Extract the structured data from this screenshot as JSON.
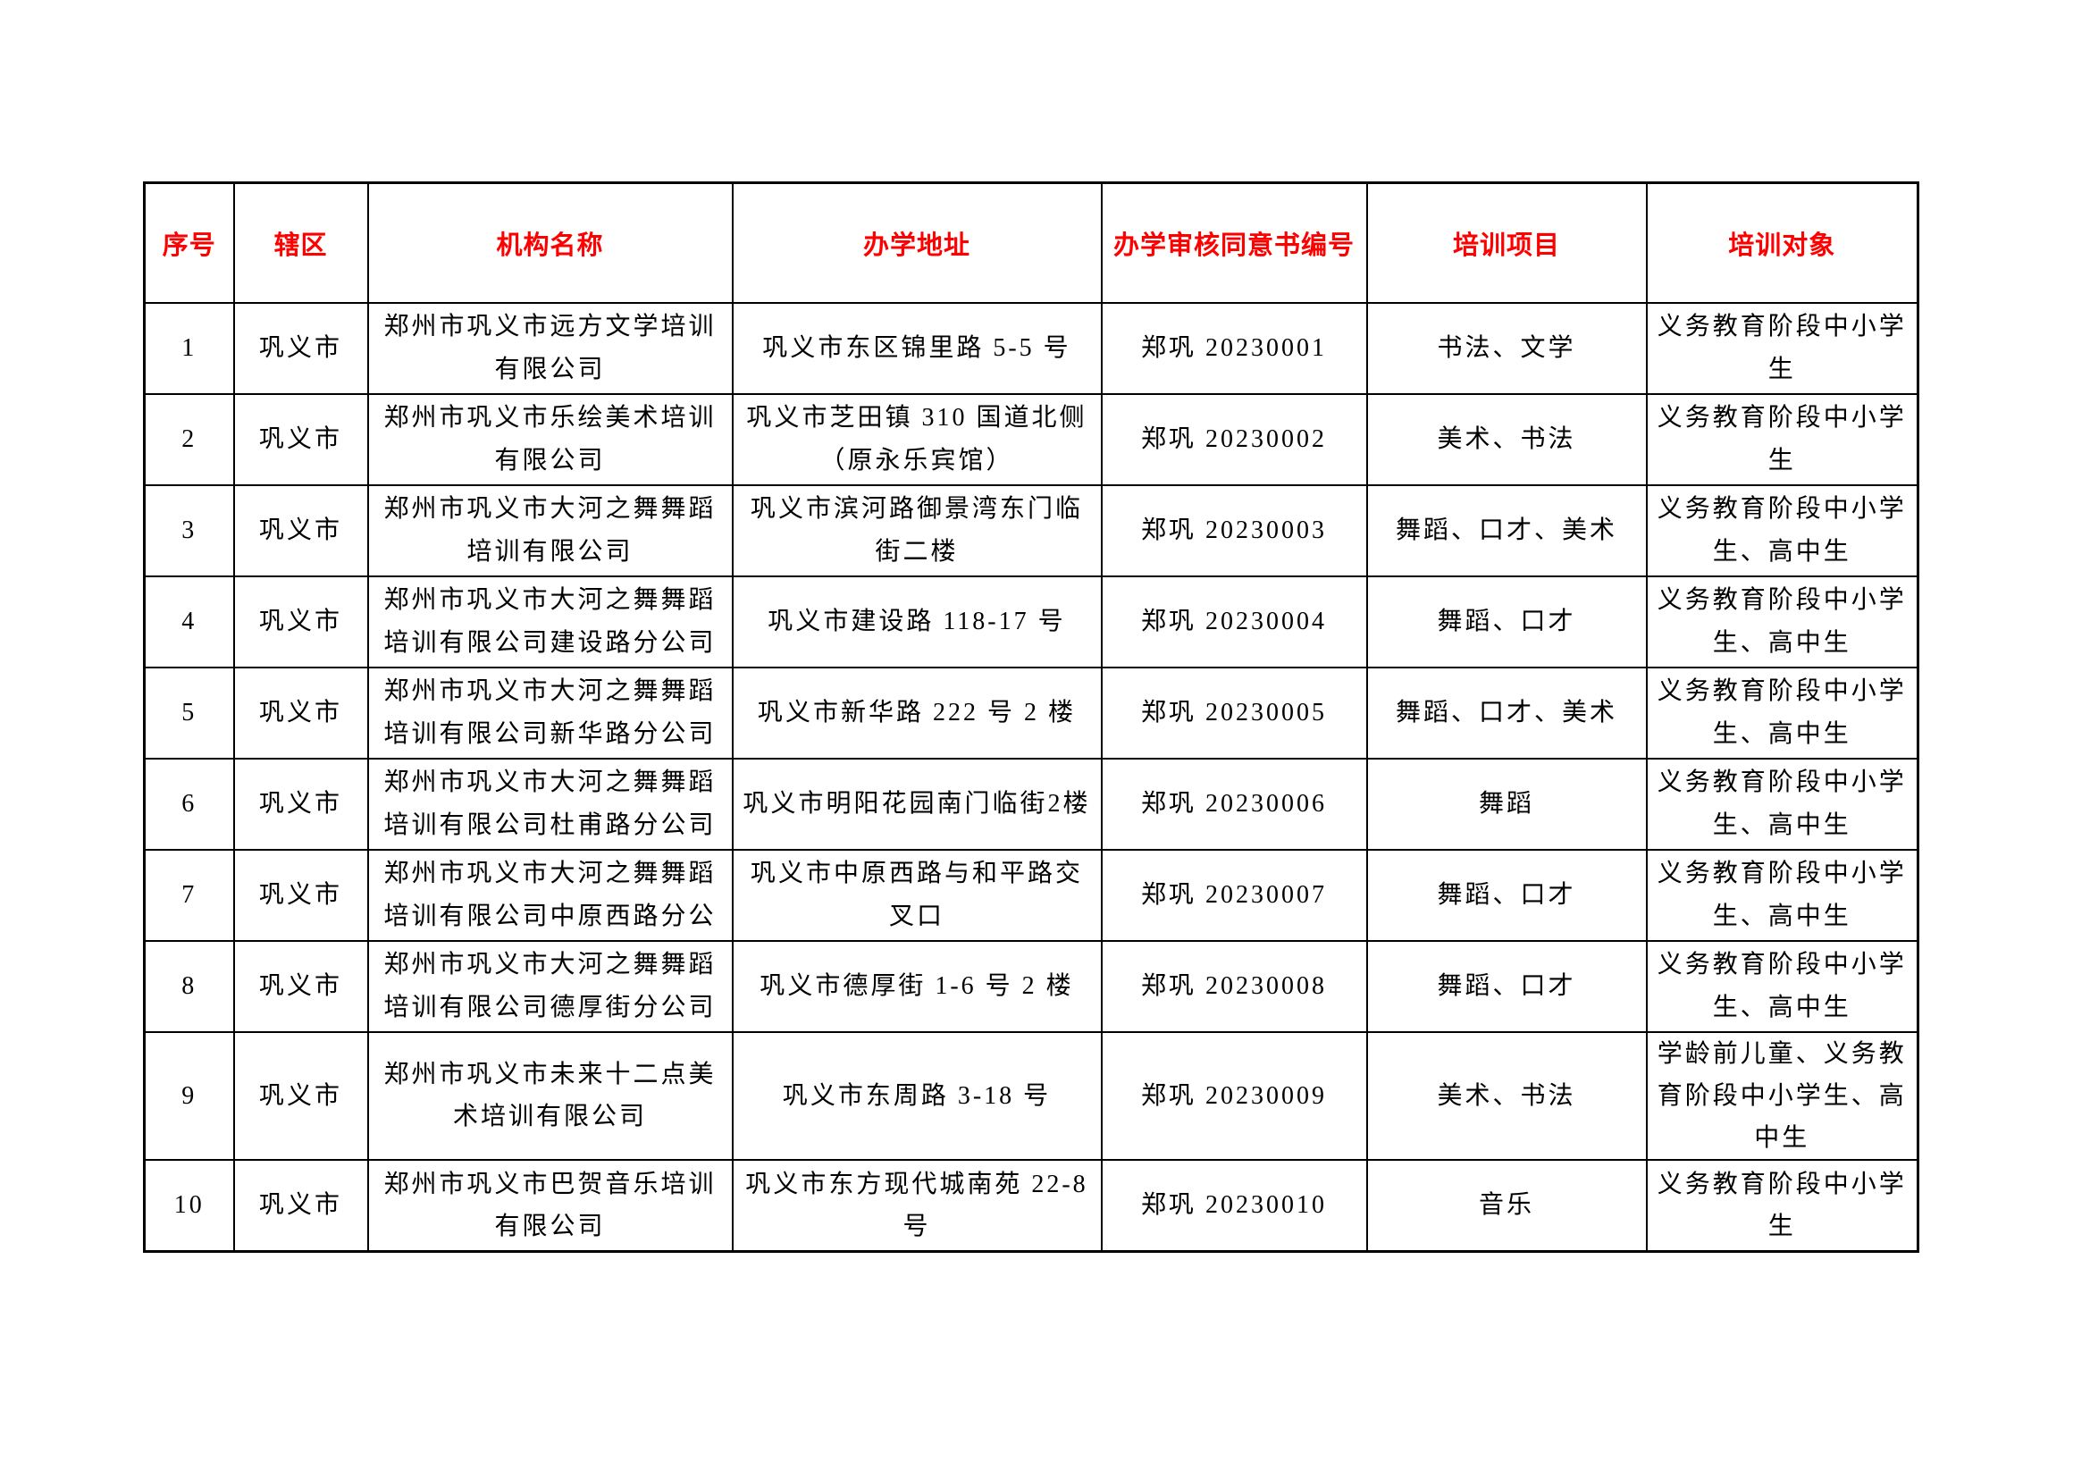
{
  "table": {
    "header_text_color": "#ff0000",
    "headers": [
      "序号",
      "辖区",
      "机构名称",
      "办学地址",
      "办学审核同意书编号",
      "培训项目",
      "培训对象"
    ],
    "rows": [
      {
        "no": "1",
        "district": "巩义市",
        "name": "郑州市巩义市远方文学培训有限公司",
        "address": "巩义市东区锦里路 5-5 号",
        "cert_no": "郑巩 20230001",
        "programs": "书法、文学",
        "targets": "义务教育阶段中小学生"
      },
      {
        "no": "2",
        "district": "巩义市",
        "name": "郑州市巩义市乐绘美术培训有限公司",
        "address": "巩义市芝田镇 310 国道北侧（原永乐宾馆）",
        "cert_no": "郑巩 20230002",
        "programs": "美术、书法",
        "targets": "义务教育阶段中小学生"
      },
      {
        "no": "3",
        "district": "巩义市",
        "name": "郑州市巩义市大河之舞舞蹈培训有限公司",
        "address": "巩义市滨河路御景湾东门临街二楼",
        "cert_no": "郑巩 20230003",
        "programs": "舞蹈、口才、美术",
        "targets": "义务教育阶段中小学生、高中生"
      },
      {
        "no": "4",
        "district": "巩义市",
        "name": "郑州市巩义市大河之舞舞蹈培训有限公司建设路分公司",
        "address": "巩义市建设路 118-17 号",
        "cert_no": "郑巩 20230004",
        "programs": "舞蹈、口才",
        "targets": "义务教育阶段中小学生、高中生"
      },
      {
        "no": "5",
        "district": "巩义市",
        "name": "郑州市巩义市大河之舞舞蹈培训有限公司新华路分公司",
        "address": "巩义市新华路 222 号 2 楼",
        "cert_no": "郑巩 20230005",
        "programs": "舞蹈、口才、美术",
        "targets": "义务教育阶段中小学生、高中生"
      },
      {
        "no": "6",
        "district": "巩义市",
        "name": "郑州市巩义市大河之舞舞蹈培训有限公司杜甫路分公司",
        "address": "巩义市明阳花园南门临街2楼",
        "cert_no": "郑巩 20230006",
        "programs": "舞蹈",
        "targets": "义务教育阶段中小学生、高中生"
      },
      {
        "no": "7",
        "district": "巩义市",
        "name": "郑州市巩义市大河之舞舞蹈培训有限公司中原西路分公",
        "address": "巩义市中原西路与和平路交叉口",
        "cert_no": "郑巩 20230007",
        "programs": "舞蹈、口才",
        "targets": "义务教育阶段中小学生、高中生"
      },
      {
        "no": "8",
        "district": "巩义市",
        "name": "郑州市巩义市大河之舞舞蹈培训有限公司德厚街分公司",
        "address": "巩义市德厚街 1-6 号 2 楼",
        "cert_no": "郑巩 20230008",
        "programs": "舞蹈、口才",
        "targets": "义务教育阶段中小学生、高中生"
      },
      {
        "no": "9",
        "district": "巩义市",
        "name": "郑州市巩义市未来十二点美术培训有限公司",
        "address": "巩义市东周路 3-18 号",
        "cert_no": "郑巩 20230009",
        "programs": "美术、书法",
        "targets": "学龄前儿童、义务教育阶段中小学生、高中生"
      },
      {
        "no": "10",
        "district": "巩义市",
        "name": "郑州市巩义市巴贺音乐培训有限公司",
        "address": "巩义市东方现代城南苑 22-8 号",
        "cert_no": "郑巩 20230010",
        "programs": "音乐",
        "targets": "义务教育阶段中小学生"
      }
    ]
  }
}
